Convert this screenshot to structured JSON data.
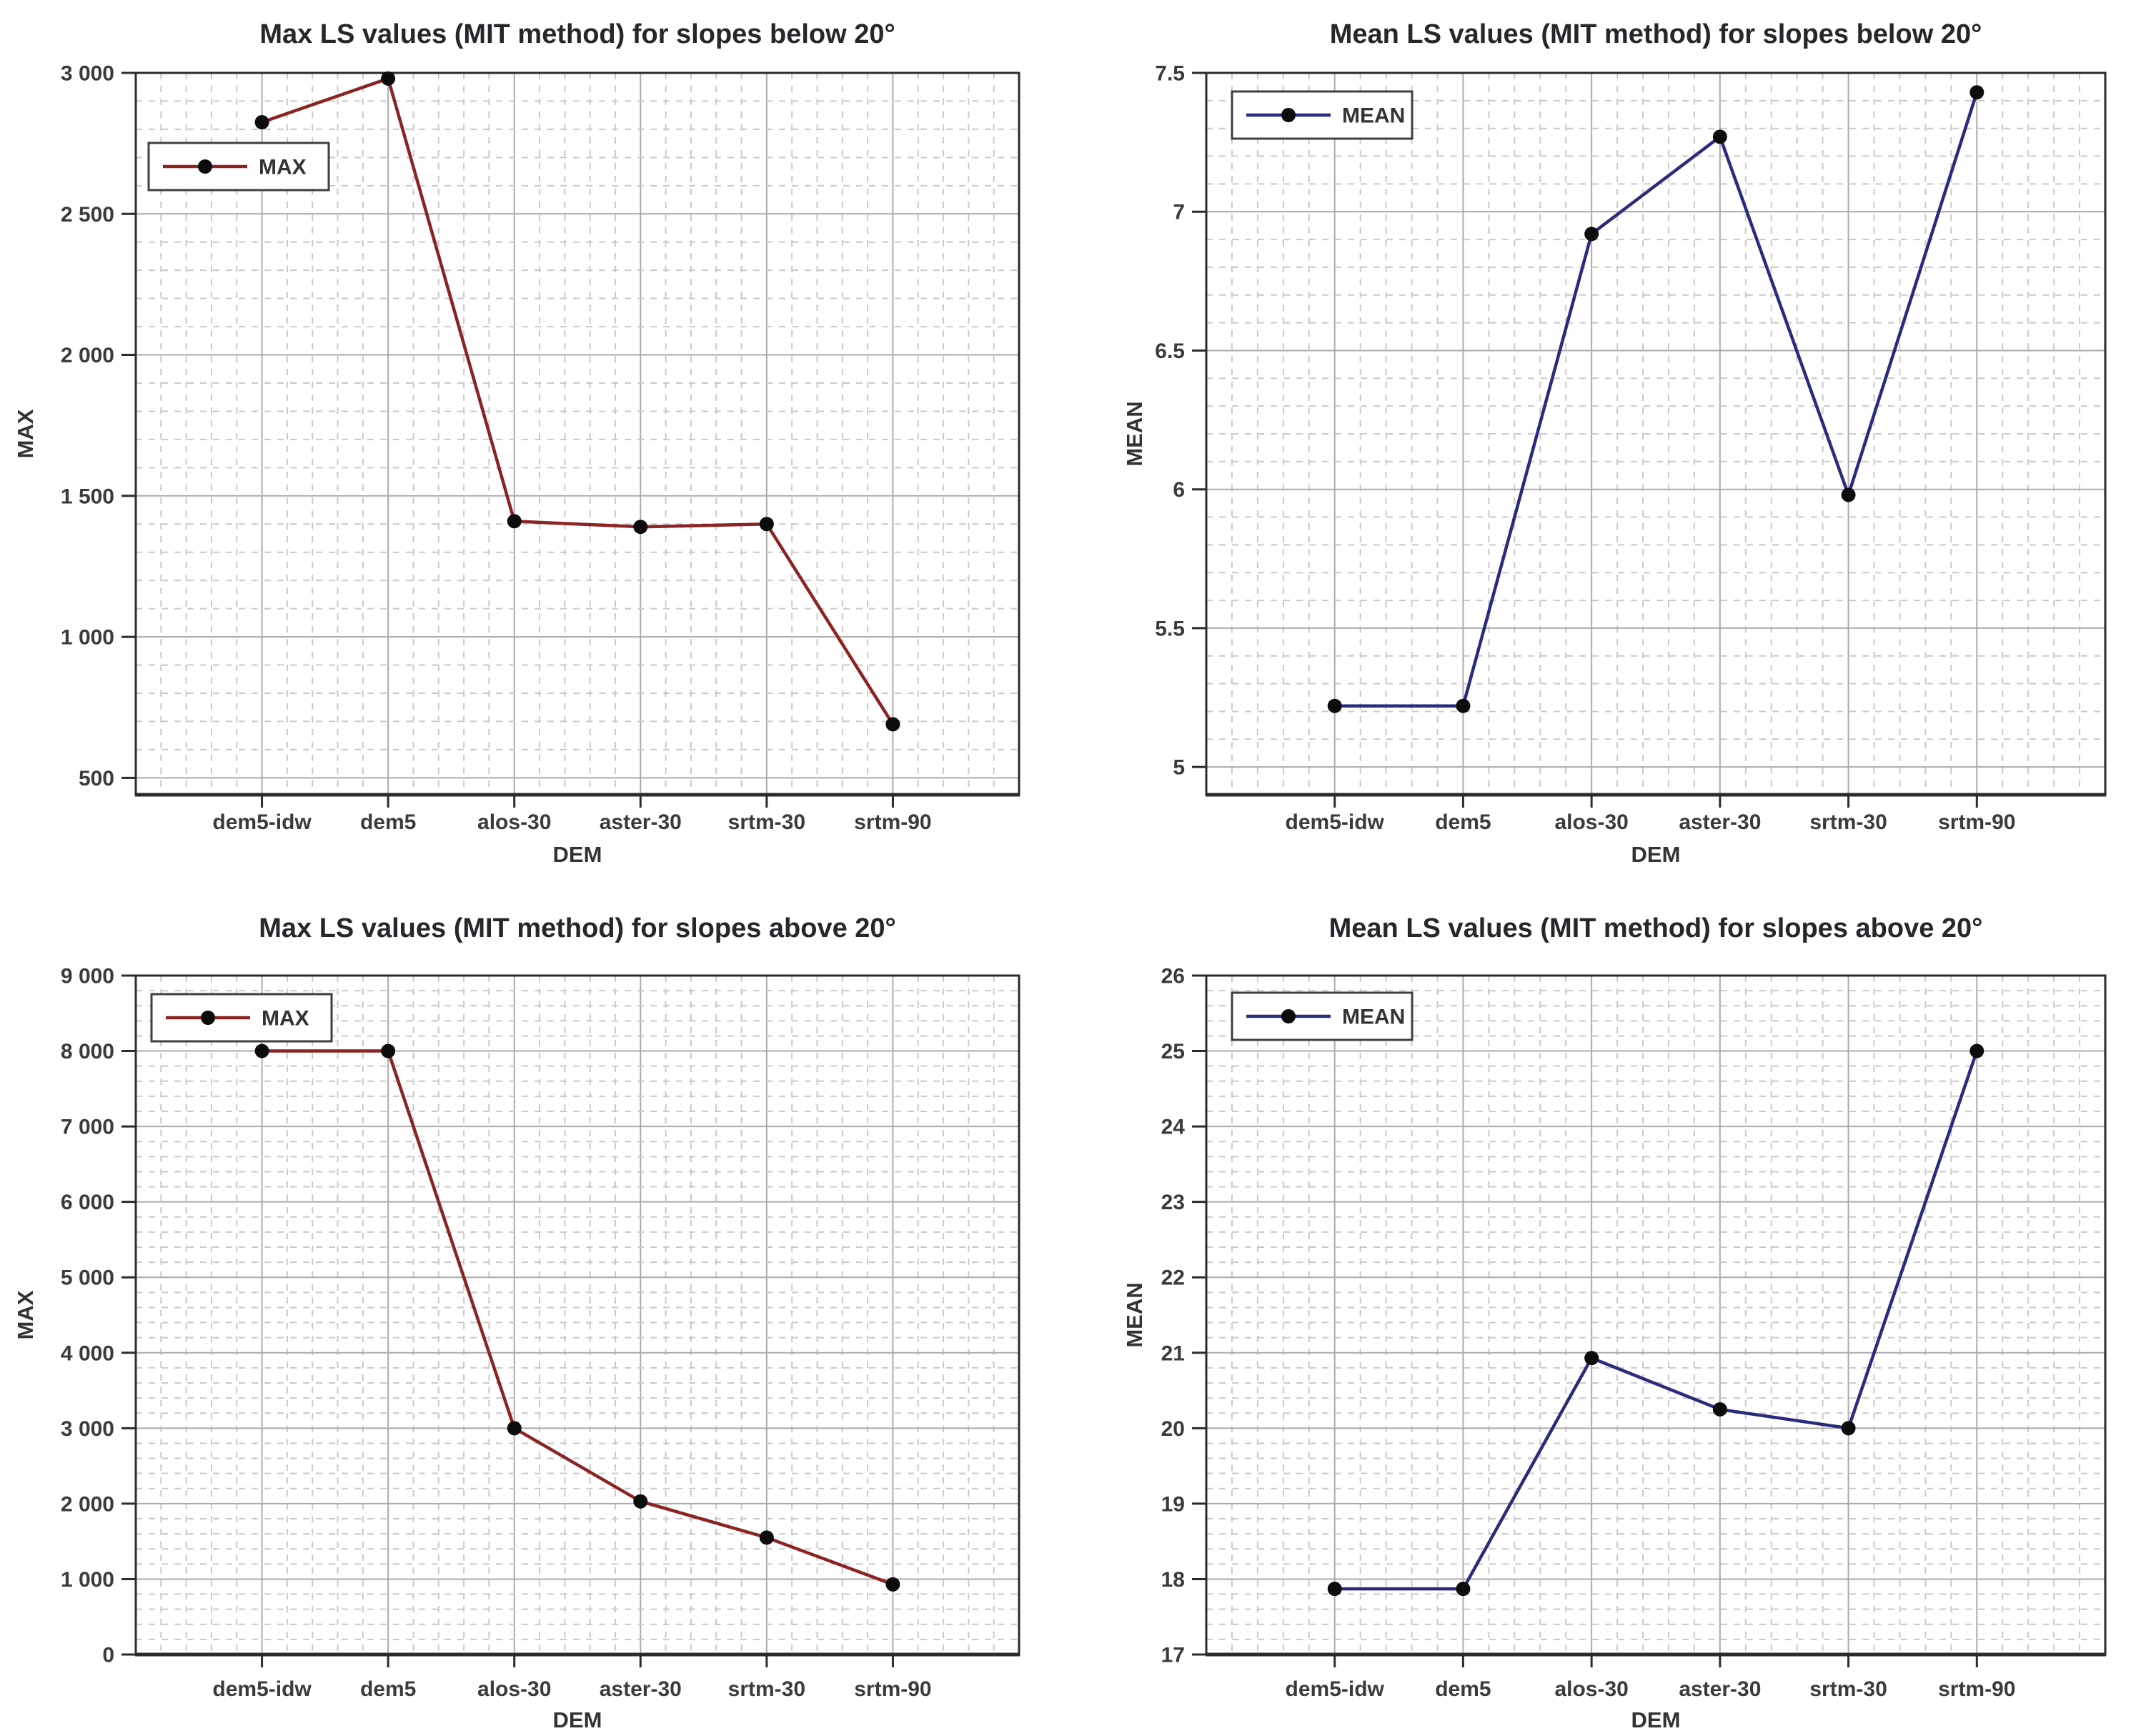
{
  "page": {
    "background": "#ffffff"
  },
  "colors": {
    "max_line": "#8b2323",
    "mean_line": "#2b2b7e",
    "marker": "#0c0c0c",
    "grid_major": "#ababab",
    "grid_minor": "#c9c9c9",
    "frame": "#2b2b2b",
    "title_text": "#26262b",
    "tick_text": "#3b3b3b",
    "legend_border": "#3f3f3f"
  },
  "chart_data": [
    {
      "type": "line",
      "title": "Max LS values (MIT method) for slopes below 20°",
      "xlabel": "DEM",
      "ylabel": "MAX",
      "legend": {
        "label": "MAX",
        "position": "top-left",
        "x_offset": 18,
        "y_offset": 98
      },
      "categories": [
        "dem5-idw",
        "dem5",
        "alos-30",
        "aster-30",
        "srtm-30",
        "srtm-90"
      ],
      "series": [
        {
          "name": "MAX",
          "color": "#8b2323",
          "values": [
            2825,
            2980,
            1410,
            1390,
            1400,
            690
          ]
        }
      ],
      "ylim": [
        440,
        3000
      ],
      "y_ticks": [
        {
          "v": 500,
          "label": "500"
        },
        {
          "v": 1000,
          "label": "1 000"
        },
        {
          "v": 1500,
          "label": "1 500"
        },
        {
          "v": 2000,
          "label": "2 000"
        },
        {
          "v": 2500,
          "label": "2 500"
        },
        {
          "v": 3000,
          "label": "3 000"
        }
      ],
      "y_minor_step": 100,
      "grid": true
    },
    {
      "type": "line",
      "title": "Mean LS values (MIT method) for slopes below 20°",
      "xlabel": "DEM",
      "ylabel": "MEAN",
      "legend": {
        "label": "MEAN",
        "position": "top-left",
        "x_offset": 36,
        "y_offset": 26
      },
      "categories": [
        "dem5-idw",
        "dem5",
        "alos-30",
        "aster-30",
        "srtm-30",
        "srtm-90"
      ],
      "series": [
        {
          "name": "MEAN",
          "color": "#2b2b7e",
          "values": [
            5.22,
            5.22,
            6.92,
            7.27,
            5.98,
            7.43
          ]
        }
      ],
      "ylim": [
        4.9,
        7.5
      ],
      "y_ticks": [
        {
          "v": 5,
          "label": "5"
        },
        {
          "v": 5.5,
          "label": "5.5"
        },
        {
          "v": 6,
          "label": "6"
        },
        {
          "v": 6.5,
          "label": "6.5"
        },
        {
          "v": 7,
          "label": "7"
        },
        {
          "v": 7.5,
          "label": "7.5"
        }
      ],
      "y_minor_step": 0.1,
      "grid": true
    },
    {
      "type": "line",
      "title": "Max LS values (MIT method) for slopes above 20°",
      "xlabel": "DEM",
      "ylabel": "MAX",
      "legend": {
        "label": "MAX",
        "position": "top-left",
        "x_offset": 22,
        "y_offset": 26
      },
      "categories": [
        "dem5-idw",
        "dem5",
        "alos-30",
        "aster-30",
        "srtm-30",
        "srtm-90"
      ],
      "series": [
        {
          "name": "MAX",
          "color": "#8b2323",
          "values": [
            8000,
            8000,
            3000,
            2030,
            1550,
            930
          ]
        }
      ],
      "ylim": [
        0,
        9000
      ],
      "y_ticks": [
        {
          "v": 0,
          "label": "0"
        },
        {
          "v": 1000,
          "label": "1 000"
        },
        {
          "v": 2000,
          "label": "2 000"
        },
        {
          "v": 3000,
          "label": "3 000"
        },
        {
          "v": 4000,
          "label": "4 000"
        },
        {
          "v": 5000,
          "label": "5 000"
        },
        {
          "v": 6000,
          "label": "6 000"
        },
        {
          "v": 7000,
          "label": "7 000"
        },
        {
          "v": 8000,
          "label": "8 000"
        },
        {
          "v": 9000,
          "label": "9 000"
        }
      ],
      "y_minor_step": 200,
      "grid": true
    },
    {
      "type": "line",
      "title": "Mean LS values (MIT method) for slopes above 20°",
      "xlabel": "DEM",
      "ylabel": "MEAN",
      "legend": {
        "label": "MEAN",
        "position": "top-left",
        "x_offset": 36,
        "y_offset": 24
      },
      "categories": [
        "dem5-idw",
        "dem5",
        "alos-30",
        "aster-30",
        "srtm-30",
        "srtm-90"
      ],
      "series": [
        {
          "name": "MEAN",
          "color": "#2b2b7e",
          "values": [
            17.87,
            17.87,
            20.93,
            20.25,
            20.0,
            25.0
          ]
        }
      ],
      "ylim": [
        17,
        26
      ],
      "y_ticks": [
        {
          "v": 17,
          "label": "17"
        },
        {
          "v": 18,
          "label": "18"
        },
        {
          "v": 19,
          "label": "19"
        },
        {
          "v": 20,
          "label": "20"
        },
        {
          "v": 21,
          "label": "21"
        },
        {
          "v": 22,
          "label": "22"
        },
        {
          "v": 23,
          "label": "23"
        },
        {
          "v": 24,
          "label": "24"
        },
        {
          "v": 25,
          "label": "25"
        },
        {
          "v": 26,
          "label": "26"
        }
      ],
      "y_minor_step": 0.2,
      "grid": true
    }
  ]
}
